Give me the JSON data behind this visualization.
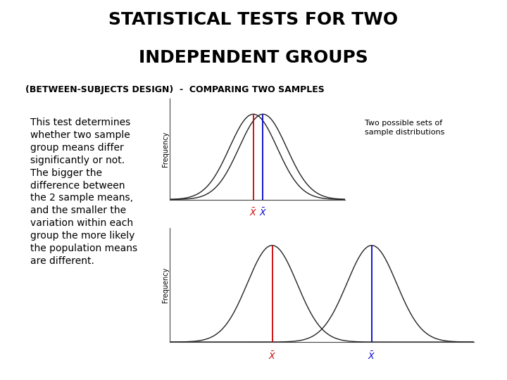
{
  "title_line1": "STATISTICAL TESTS FOR TWO",
  "title_line2": "INDEPENDENT GROUPS",
  "subtitle": "(BETWEEN-SUBJECTS DESIGN)  -  COMPARING TWO SAMPLES",
  "body_text": "This test determines\nwhether two sample\ngroup means differ\nsignificantly or not.\nThe bigger the\ndifference between\nthe 2 sample means,\nand the smaller the\nvariation within each\ngroup the more likely\nthe population means\nare different.",
  "annotation_text": "Two possible sets of\nsample distributions",
  "top_plot": {
    "mean1": -0.25,
    "mean2": 0.35,
    "std1": 1.5,
    "std2": 1.5,
    "color1": "#cc0000",
    "color2": "#0000cc",
    "line_color": "#222222"
  },
  "bottom_plot": {
    "mean1": -1.8,
    "mean2": 1.8,
    "std1": 0.9,
    "std2": 0.9,
    "color1": "#cc0000",
    "color2": "#0000cc",
    "line_color": "#222222"
  },
  "bg_color": "#ffffff",
  "text_color": "#000000",
  "title_fontsize": 18,
  "subtitle_fontsize": 9,
  "body_fontsize": 10,
  "annot_fontsize": 8,
  "freq_label": "Frequency",
  "freq_fontsize": 7
}
